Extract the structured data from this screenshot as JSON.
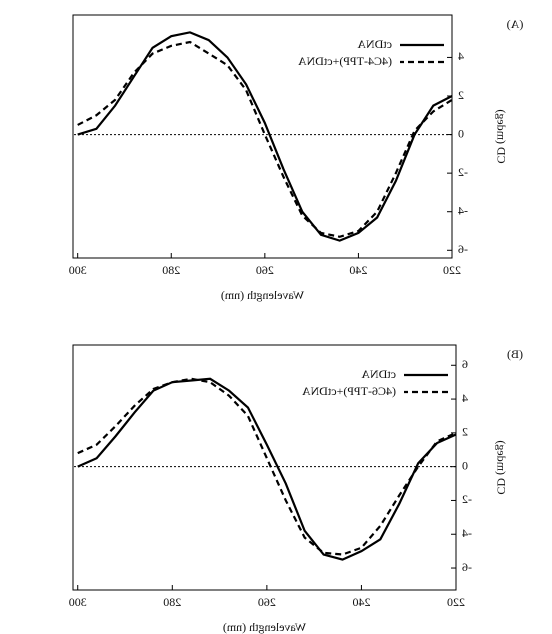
{
  "chart_data": [
    {
      "type": "line",
      "panel_label": "(A)",
      "x_label": "Wavelength (nm)",
      "y_label": "CD (mdeg)",
      "x": [
        300,
        296,
        292,
        288,
        284,
        280,
        276,
        272,
        268,
        264,
        260,
        256,
        252,
        248,
        244,
        240,
        236,
        232,
        228,
        224,
        220
      ],
      "series": [
        {
          "name": "ctDNA",
          "color": "#000000",
          "dash": false,
          "values": [
            0.0,
            0.3,
            1.5,
            3.0,
            4.5,
            5.1,
            5.3,
            4.9,
            4.0,
            2.6,
            0.6,
            -1.8,
            -4.0,
            -5.2,
            -5.5,
            -5.1,
            -4.3,
            -2.4,
            0.0,
            1.5,
            2.0
          ]
        },
        {
          "name": "(4C4-TPP)+ctDNA",
          "color": "#000000",
          "dash": true,
          "values": [
            0.5,
            1.0,
            1.8,
            3.2,
            4.2,
            4.6,
            4.8,
            4.2,
            3.6,
            2.3,
            0.0,
            -2.2,
            -4.2,
            -5.1,
            -5.3,
            -5.0,
            -4.0,
            -2.0,
            0.2,
            1.2,
            1.8
          ]
        }
      ],
      "xlim": [
        220,
        301
      ],
      "xticks": [
        220,
        240,
        260,
        280,
        300
      ],
      "ylim": [
        -6.4,
        6.2
      ],
      "yticks": [
        -6,
        -4,
        -2,
        0,
        2,
        4
      ],
      "legend": "upper left"
    },
    {
      "type": "line",
      "panel_label": "(B)",
      "x_label": "Wavelength (nm)",
      "y_label": "CD (mdeg)",
      "x": [
        300,
        296,
        292,
        288,
        284,
        280,
        276,
        272,
        268,
        264,
        260,
        256,
        252,
        248,
        244,
        240,
        236,
        232,
        228,
        224,
        220
      ],
      "series": [
        {
          "name": "ctDNA",
          "color": "#000000",
          "dash": false,
          "values": [
            0.0,
            0.5,
            1.8,
            3.2,
            4.5,
            5.0,
            5.1,
            5.2,
            4.5,
            3.5,
            1.3,
            -1.0,
            -3.8,
            -5.2,
            -5.5,
            -5.0,
            -4.3,
            -2.2,
            0.2,
            1.4,
            1.9
          ]
        },
        {
          "name": "(4C6-TPP)+ctDNA",
          "color": "#000000",
          "dash": true,
          "values": [
            0.8,
            1.3,
            2.4,
            3.6,
            4.6,
            5.0,
            5.2,
            5.0,
            4.2,
            3.0,
            0.5,
            -2.0,
            -4.2,
            -5.1,
            -5.2,
            -4.8,
            -3.5,
            -1.7,
            0.0,
            1.5,
            2.0
          ]
        }
      ],
      "xlim": [
        220,
        301
      ],
      "xticks": [
        220,
        240,
        260,
        280,
        300
      ],
      "ylim": [
        -7.3,
        7.2
      ],
      "yticks": [
        -6,
        -4,
        -2,
        0,
        2,
        4,
        6
      ],
      "legend": "upper left"
    }
  ]
}
